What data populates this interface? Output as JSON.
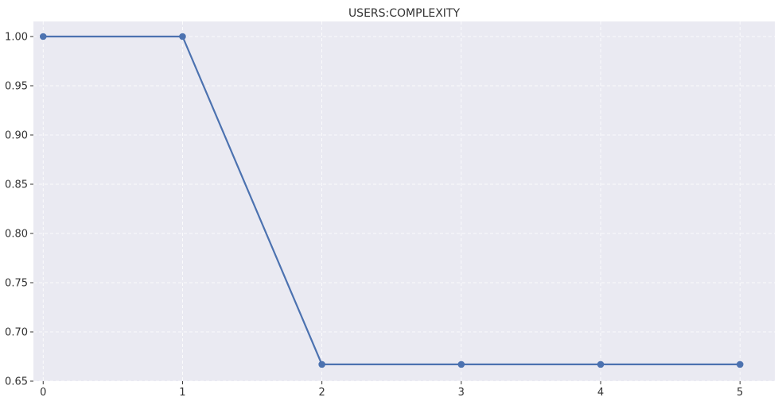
{
  "chart_data": {
    "type": "line",
    "title": "USERS:COMPLEXITY",
    "xlabel": "",
    "ylabel": "",
    "x": [
      0,
      1,
      2,
      3,
      4,
      5
    ],
    "xticks": [
      "0",
      "1",
      "2",
      "3",
      "4",
      "5"
    ],
    "yticks": [
      "0.65",
      "0.70",
      "0.75",
      "0.80",
      "0.85",
      "0.90",
      "0.95",
      "1.00"
    ],
    "ylim": [
      0.65,
      1.0
    ],
    "xlim": [
      -0.07,
      5.25
    ],
    "grid": true,
    "series": [
      {
        "values": [
          1.0,
          1.0,
          0.667,
          0.667,
          0.667,
          0.667
        ],
        "color": "#4c72b0"
      }
    ],
    "colors": {
      "plot_background": "#eaeaf2",
      "axis_text": "#333333"
    }
  }
}
